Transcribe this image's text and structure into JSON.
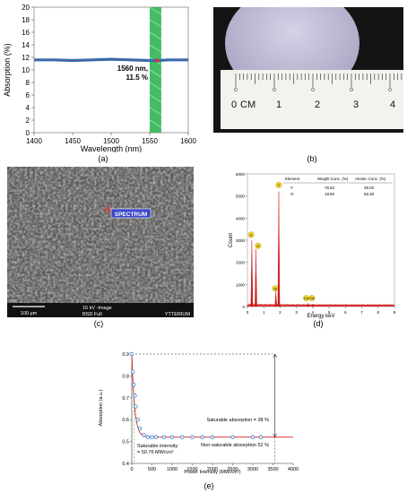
{
  "captions": {
    "a": "(a)",
    "b": "(b)",
    "c": "(c)",
    "d": "(d)",
    "e": "(e)"
  },
  "panel_a": {
    "ylabel": "Absorption (%)",
    "xlabel": "Wavelength (nm)",
    "annotation_line1": "1560 nm,",
    "annotation_line2": "11.5 %",
    "xticks": [
      "1400",
      "1450",
      "1500",
      "1550",
      "1600"
    ],
    "yticks": [
      "0",
      "2",
      "4",
      "6",
      "8",
      "10",
      "12",
      "14",
      "16",
      "18",
      "20"
    ],
    "colors": {
      "line": "#2f6db5",
      "marker": "#e03030",
      "band": "#22b04a"
    }
  },
  "panel_b": {
    "ruler_labels": [
      "0",
      "CM",
      "1",
      "2",
      "3",
      "4"
    ]
  },
  "panel_c": {
    "spectrum_label": "SPECTRUM",
    "scale_bar": "100 µm",
    "info_kv": "15 kV -Image",
    "info_mode": "BSD Full",
    "info_sample": "YTTERIUM"
  },
  "panel_d": {
    "xlabel": "Energy keV",
    "ylabel": "Count",
    "xticks": [
      "0",
      "1",
      "2",
      "3",
      "4",
      "5",
      "6",
      "7",
      "8",
      "9"
    ],
    "yticks": [
      "0",
      "1000",
      "2000",
      "3000",
      "4000",
      "5000",
      "6000"
    ],
    "table": {
      "headers": [
        "Element",
        "Weight Conc. (%)",
        "Atomic Conc. (%)"
      ],
      "rows": [
        [
          "Y",
          "76.53",
          "39.03"
        ],
        [
          "O",
          "19.50",
          "55.28"
        ]
      ]
    },
    "peak_labels": {
      "y_main": "Y",
      "c": "C",
      "o": "O",
      "y_low": "Y",
      "si": "Si",
      "ca": "Ca",
      "ca2": "Ca"
    }
  },
  "panel_e": {
    "ylabel": "Absorption (a.u.)",
    "xlabel": "Power Intensity (MW/cm²)",
    "xticks": [
      "0",
      "500",
      "1000",
      "1500",
      "2000",
      "2500",
      "3000",
      "3500",
      "4000"
    ],
    "yticks": [
      "0.4",
      "0.5",
      "0.6",
      "0.7",
      "0.8",
      "0.9"
    ],
    "saturable_absorption": "Saturable absorption = 38 %",
    "non_saturable_absorption": "Non-saturable absorption 52 %",
    "saturable_intensity_line1": "Saturable intensity",
    "saturable_intensity_line2": "= 50.76 MW/cm²",
    "colors": {
      "points": "#3a7cc4",
      "fit": "#e02020",
      "guide": "#222222"
    }
  },
  "chart_data": [
    {
      "type": "line",
      "title": "",
      "xlabel": "Wavelength (nm)",
      "ylabel": "Absorption (%)",
      "xlim": [
        1400,
        1600
      ],
      "ylim": [
        0,
        20
      ],
      "x": [
        1400,
        1425,
        1450,
        1475,
        1500,
        1525,
        1550,
        1560,
        1575,
        1600
      ],
      "series": [
        {
          "values": [
            11.6,
            11.6,
            11.5,
            11.6,
            11.7,
            11.6,
            11.5,
            11.5,
            11.6,
            11.6
          ]
        }
      ],
      "highlight_band": [
        1550,
        1565
      ]
    },
    {
      "type": "bar",
      "title": "",
      "xlabel": "Energy keV",
      "ylabel": "Count",
      "xlim": [
        0,
        9
      ],
      "ylim": [
        0,
        6000
      ],
      "peaks": [
        {
          "label": "C",
          "x": 0.27,
          "y": 3000
        },
        {
          "label": "O",
          "x": 0.52,
          "y": 2600
        },
        {
          "label": "Si",
          "x": 1.74,
          "y": 700
        },
        {
          "label": "Y",
          "x": 1.92,
          "y": 5200
        },
        {
          "label": "Ca",
          "x": 3.69,
          "y": 150
        },
        {
          "label": "Ca",
          "x": 4.01,
          "y": 120
        }
      ]
    },
    {
      "type": "scatter",
      "title": "",
      "xlabel": "Power Intensity (MW/cm²)",
      "ylabel": "Absorption (a.u.)",
      "xlim": [
        0,
        4000
      ],
      "ylim": [
        0.4,
        0.9
      ],
      "x": [
        0,
        25,
        50,
        75,
        100,
        150,
        200,
        300,
        400,
        500,
        600,
        800,
        1000,
        1250,
        1500,
        1750,
        2000,
        2500,
        3000,
        3200
      ],
      "y": [
        0.9,
        0.82,
        0.76,
        0.71,
        0.66,
        0.6,
        0.56,
        0.53,
        0.52,
        0.52,
        0.52,
        0.52,
        0.52,
        0.52,
        0.52,
        0.52,
        0.52,
        0.52,
        0.52,
        0.52
      ]
    }
  ]
}
